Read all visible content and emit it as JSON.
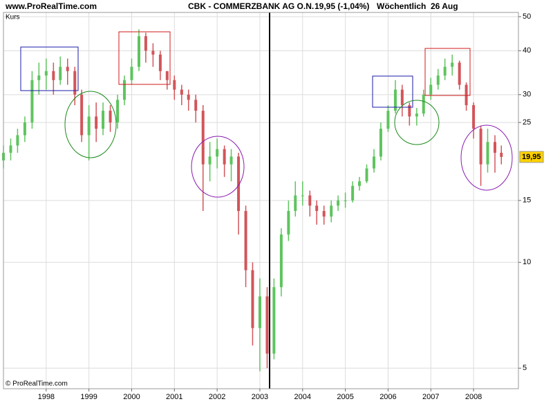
{
  "site": "www.ProRealTime.com",
  "chart_data": {
    "type": "ohlc",
    "title": "CBK - COMMERZBANK AG O.N.",
    "quote": "19,95 (-1,04%)",
    "period": "Wöchentlich  26 Aug",
    "y_label": "Kurs",
    "price_tag": "19,95",
    "copyright": "© ProRealTime.com",
    "log_y": true,
    "grid": true,
    "up_color": "#5ec45e",
    "down_color": "#d2555a",
    "xlim": [
      1997.0,
      2009.05
    ],
    "xticks": [
      1998,
      1999,
      2000,
      2001,
      2002,
      2003,
      2004,
      2005,
      2006,
      2007,
      2008
    ],
    "ylim": [
      4.37,
      51.4
    ],
    "yticks": [
      5,
      10,
      15,
      25,
      30,
      40,
      50
    ],
    "x": [
      1997.0,
      1997.17,
      1997.33,
      1997.5,
      1997.67,
      1997.83,
      1998.0,
      1998.17,
      1998.33,
      1998.5,
      1998.67,
      1998.83,
      1999.0,
      1999.17,
      1999.33,
      1999.5,
      1999.67,
      1999.83,
      2000.0,
      2000.17,
      2000.33,
      2000.5,
      2000.67,
      2000.83,
      2001.0,
      2001.17,
      2001.33,
      2001.5,
      2001.67,
      2001.83,
      2002.0,
      2002.17,
      2002.33,
      2002.5,
      2002.67,
      2002.83,
      2003.0,
      2003.17,
      2003.33,
      2003.5,
      2003.67,
      2003.83,
      2004.0,
      2004.17,
      2004.33,
      2004.5,
      2004.67,
      2004.83,
      2005.0,
      2005.17,
      2005.33,
      2005.5,
      2005.67,
      2005.83,
      2006.0,
      2006.17,
      2006.33,
      2006.5,
      2006.67,
      2006.83,
      2007.0,
      2007.17,
      2007.33,
      2007.5,
      2007.67,
      2007.83,
      2008.0,
      2008.17,
      2008.33,
      2008.5,
      2008.65
    ],
    "open": [
      19.5,
      20.5,
      21.5,
      23,
      25,
      33,
      34,
      35,
      33,
      36,
      35,
      30,
      23,
      26,
      24,
      27,
      25,
      29,
      33,
      36,
      44,
      40,
      39,
      35,
      33,
      31,
      30,
      29,
      27,
      19,
      20,
      21,
      19,
      20,
      14,
      9.5,
      6.5,
      8,
      5.5,
      8.5,
      12,
      14,
      15.5,
      15.5,
      14.5,
      14,
      13.5,
      14.5,
      15,
      15,
      16.5,
      17,
      18.5,
      20,
      24,
      27,
      31,
      28,
      26,
      26.5,
      30,
      32,
      34,
      36,
      37,
      32,
      28,
      24,
      19,
      22,
      20.5
    ],
    "high": [
      21.5,
      22.5,
      24,
      26,
      35,
      37,
      38,
      37,
      38.5,
      38,
      36,
      31,
      28,
      28.5,
      28.5,
      28,
      30,
      34,
      38,
      46,
      45,
      42,
      40,
      35,
      34,
      32,
      31,
      30,
      28,
      22,
      22.5,
      21.5,
      21,
      20.5,
      14.5,
      10,
      9,
      8.5,
      9,
      12.5,
      15,
      17,
      17,
      16,
      15,
      14.5,
      15,
      15.5,
      15.8,
      17,
      17.5,
      19,
      21,
      25,
      28,
      33,
      32,
      28.5,
      27.5,
      31,
      33.5,
      35.5,
      38,
      39,
      37.5,
      32.5,
      28.5,
      24.5,
      24,
      23,
      21.5
    ],
    "low": [
      18.5,
      19.5,
      20.5,
      22,
      24,
      30,
      31,
      30,
      32,
      32,
      28,
      22,
      19.5,
      22,
      23,
      23.5,
      24,
      28,
      32,
      35,
      37,
      36,
      33,
      31,
      29,
      28,
      27,
      25,
      14,
      17,
      18.5,
      17.5,
      17,
      12,
      8.5,
      5.8,
      4.9,
      5,
      5.3,
      8,
      11.5,
      13.5,
      14.5,
      13.5,
      12.8,
      12.8,
      13,
      14,
      14.3,
      14.8,
      16,
      16.8,
      18,
      19.5,
      23.5,
      26.5,
      26,
      24.5,
      24.5,
      26,
      29,
      31,
      33,
      34,
      31,
      27,
      22.5,
      16.5,
      18,
      18,
      19
    ],
    "close": [
      20.5,
      21.5,
      23,
      25,
      33,
      34,
      35,
      33,
      36,
      35,
      30,
      23,
      26,
      24,
      27,
      25,
      29,
      33,
      36,
      44,
      40,
      39,
      35,
      33,
      31,
      30,
      29,
      27,
      19,
      20,
      21,
      19,
      20,
      14,
      9.5,
      6.5,
      8,
      5.5,
      8.5,
      12,
      14,
      15.5,
      15.5,
      14.5,
      14,
      13.5,
      14.5,
      15,
      15,
      16.5,
      17,
      18.5,
      20,
      24,
      27,
      31,
      28,
      26,
      26.5,
      30,
      32,
      34,
      36,
      37,
      32,
      28,
      24,
      19,
      22,
      20.5,
      19.95
    ]
  }
}
